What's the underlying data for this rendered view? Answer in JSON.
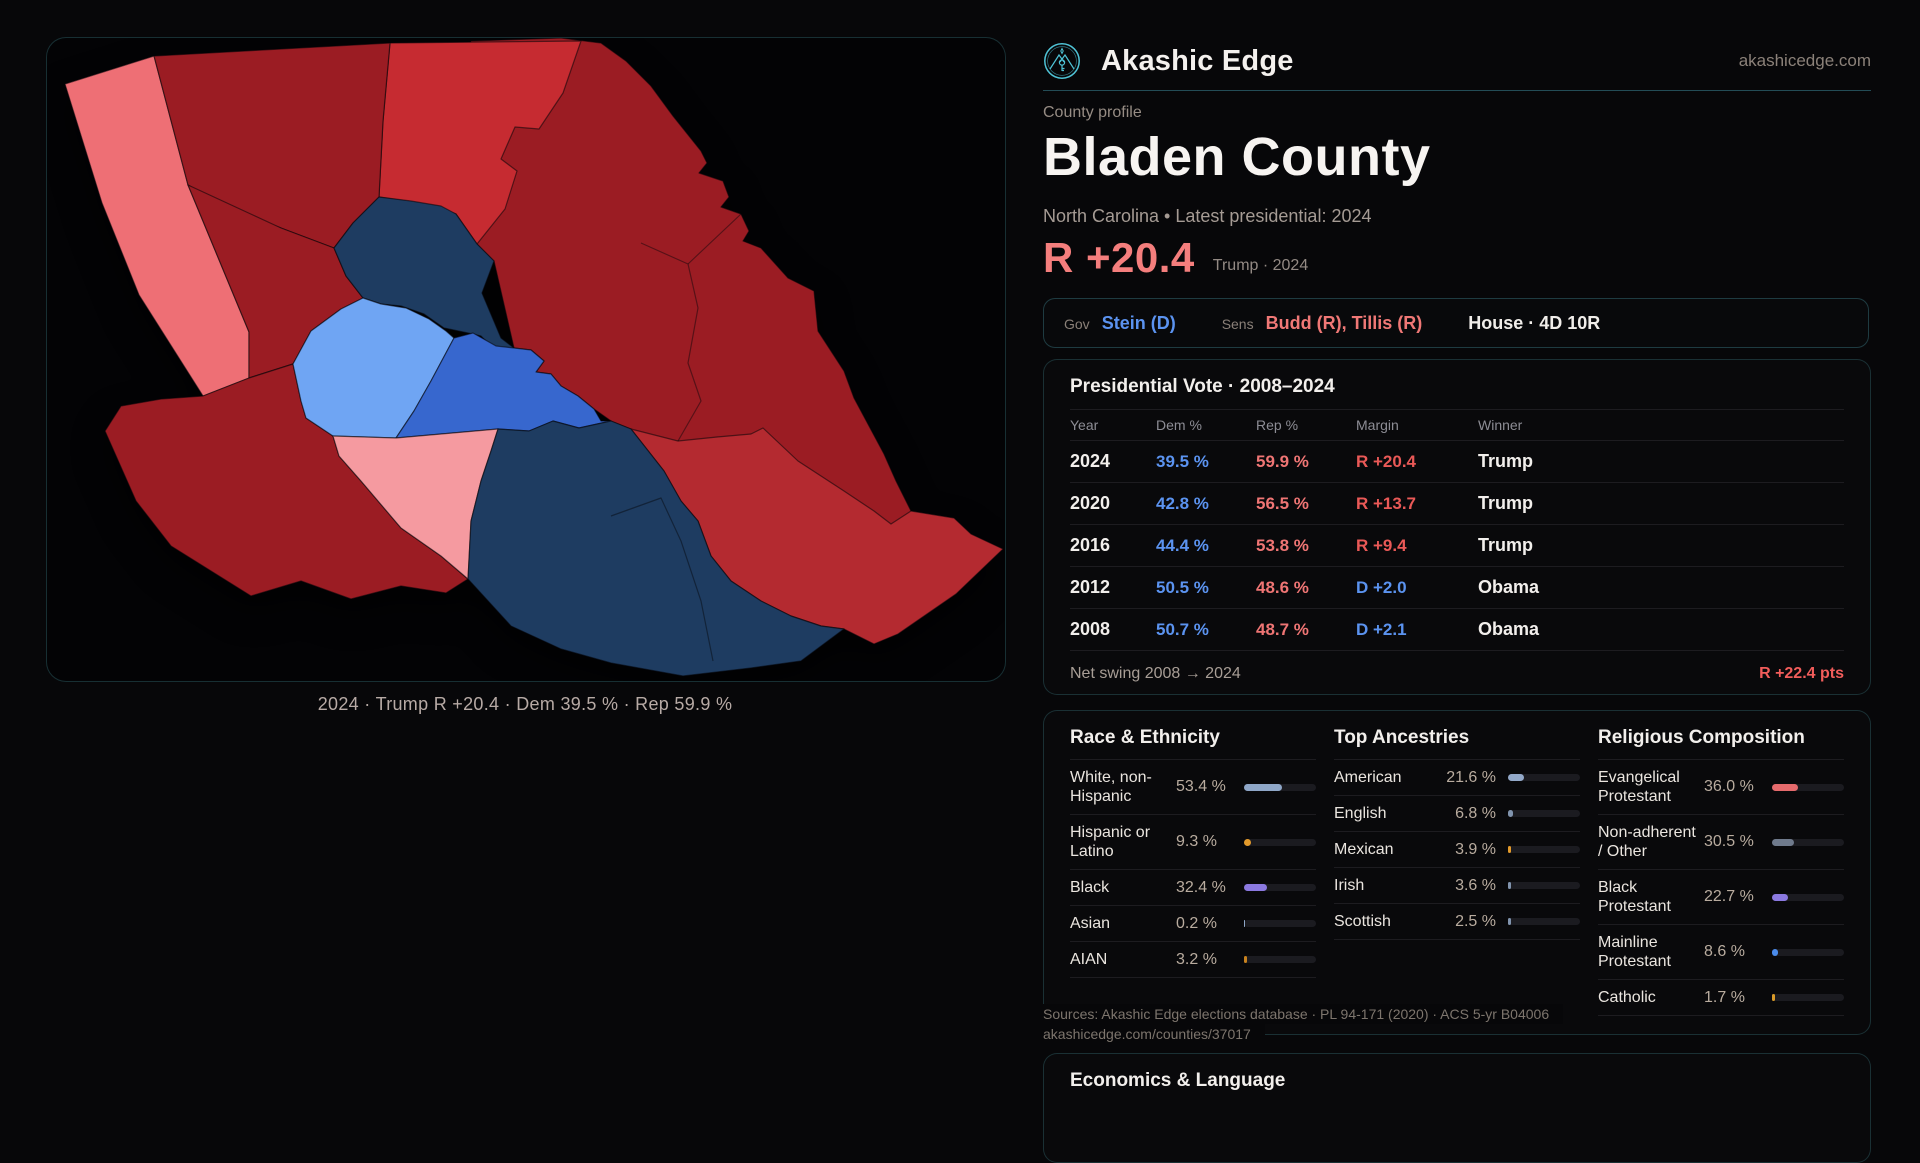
{
  "header": {
    "brand": "Akashic Edge",
    "site": "akashicedge.com"
  },
  "profile": {
    "eyebrow": "County profile",
    "title": "Bladen County",
    "subtitle": "North Carolina • Latest presidential: 2024",
    "headline_margin": "R +20.4",
    "headline_note": "Trump · 2024"
  },
  "officials": {
    "gov_label": "Gov",
    "gov_value": "Stein (D)",
    "sens_label": "Sens",
    "sens_value": "Budd (R), Tillis (R)",
    "house_value": "House · 4D 10R"
  },
  "map": {
    "caption": "2024 · Trump R +20.4 · Dem 39.5 % · Rep 59.9 %",
    "region_colors": {
      "dark_red": "#9b1c23",
      "mid_red": "#b42a30",
      "bright_red": "#c62b31",
      "salmon": "#ee6f75",
      "pink": "#f59aa0",
      "navy": "#1e3c61",
      "light_blue": "#6fa5f3",
      "medium_blue": "#3767ce"
    },
    "logo_color": "#4fc3d6"
  },
  "presidential": {
    "title": "Presidential Vote · 2008–2024",
    "columns": [
      "Year",
      "Dem %",
      "Rep %",
      "Margin",
      "Winner"
    ],
    "rows": [
      {
        "year": "2024",
        "dem": "39.5 %",
        "rep": "59.9 %",
        "margin": "R +20.4",
        "margin_party": "R",
        "winner": "Trump"
      },
      {
        "year": "2020",
        "dem": "42.8 %",
        "rep": "56.5 %",
        "margin": "R +13.7",
        "margin_party": "R",
        "winner": "Trump"
      },
      {
        "year": "2016",
        "dem": "44.4 %",
        "rep": "53.8 %",
        "margin": "R +9.4",
        "margin_party": "R",
        "winner": "Trump"
      },
      {
        "year": "2012",
        "dem": "50.5 %",
        "rep": "48.6 %",
        "margin": "D +2.0",
        "margin_party": "D",
        "winner": "Obama"
      },
      {
        "year": "2008",
        "dem": "50.7 %",
        "rep": "48.7 %",
        "margin": "D +2.1",
        "margin_party": "D",
        "winner": "Obama"
      }
    ],
    "net_swing_label": "Net swing 2008 → 2024",
    "net_swing_value": "R +22.4 pts"
  },
  "demographics": {
    "race": {
      "title": "Race & Ethnicity",
      "rows": [
        {
          "label": "White, non-Hispanic",
          "value": "53.4 %",
          "pct": 53.4,
          "color": "#8fa7c8"
        },
        {
          "label": "Hispanic or Latino",
          "value": "9.3 %",
          "pct": 9.3,
          "color": "#e39a2b"
        },
        {
          "label": "Black",
          "value": "32.4 %",
          "pct": 32.4,
          "color": "#8b79e0"
        },
        {
          "label": "Asian",
          "value": "0.2 %",
          "pct": 0.2,
          "color": "#8fa7c8"
        },
        {
          "label": "AIAN",
          "value": "3.2 %",
          "pct": 3.2,
          "color": "#c8821f"
        }
      ]
    },
    "ancestry": {
      "title": "Top Ancestries",
      "rows": [
        {
          "label": "American",
          "value": "21.6 %",
          "pct": 21.6,
          "color": "#93a9c9"
        },
        {
          "label": "English",
          "value": "6.8 %",
          "pct": 6.8,
          "color": "#8194ae"
        },
        {
          "label": "Mexican",
          "value": "3.9 %",
          "pct": 3.9,
          "color": "#e39a2b"
        },
        {
          "label": "Irish",
          "value": "3.6 %",
          "pct": 3.6,
          "color": "#8194ae"
        },
        {
          "label": "Scottish",
          "value": "2.5 %",
          "pct": 2.5,
          "color": "#8194ae"
        }
      ]
    },
    "religion": {
      "title": "Religious Composition",
      "rows": [
        {
          "label": "Evangelical Protestant",
          "value": "36.0 %",
          "pct": 36.0,
          "color": "#e56a6c"
        },
        {
          "label": "Non-adherent / Other",
          "value": "30.5 %",
          "pct": 30.5,
          "color": "#6f7a8c"
        },
        {
          "label": "Black Protestant",
          "value": "22.7 %",
          "pct": 22.7,
          "color": "#8b79e0"
        },
        {
          "label": "Mainline Protestant",
          "value": "8.6 %",
          "pct": 8.6,
          "color": "#4a8bec"
        },
        {
          "label": "Catholic",
          "value": "1.7 %",
          "pct": 1.7,
          "color": "#d99a29"
        }
      ]
    }
  },
  "sources": {
    "line1": "Sources: Akashic Edge elections database · PL 94-171 (2020) · ACS 5-yr B04006",
    "line2": "akashicedge.com/counties/37017"
  },
  "economics": {
    "title": "Economics & Language"
  }
}
